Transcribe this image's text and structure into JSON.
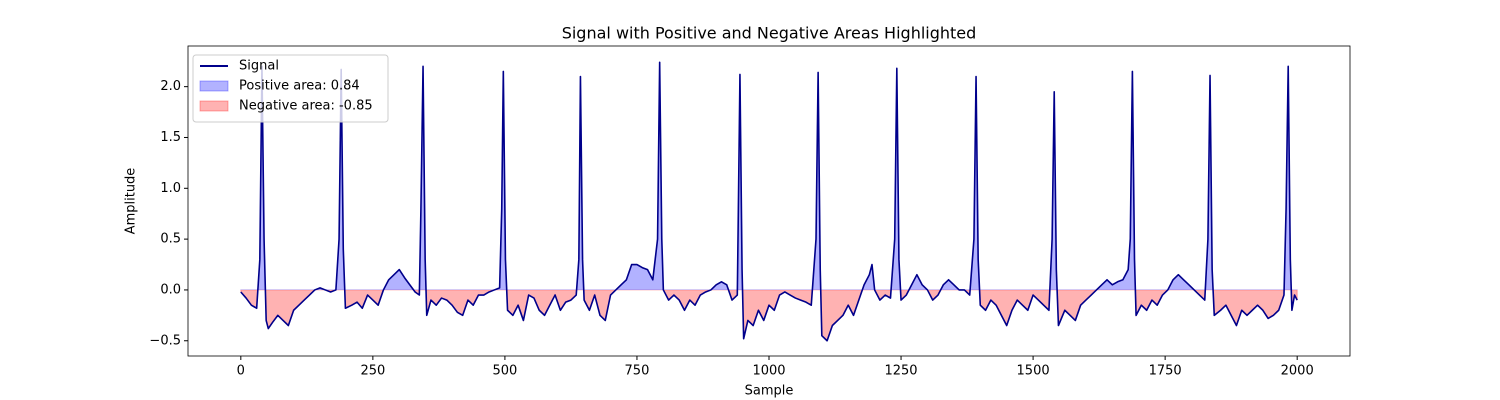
{
  "chart_data": {
    "type": "line",
    "title": "Signal with Positive and Negative Areas Highlighted",
    "x_label": "Sample",
    "y_label": "Amplitude",
    "x": [
      0,
      10,
      20,
      30,
      36,
      40,
      44,
      48,
      52,
      60,
      70,
      80,
      90,
      100,
      110,
      120,
      130,
      140,
      150,
      160,
      170,
      180,
      186,
      190,
      194,
      198,
      210,
      220,
      230,
      240,
      250,
      260,
      270,
      280,
      290,
      300,
      310,
      320,
      330,
      338,
      341,
      345,
      349,
      352,
      360,
      370,
      380,
      390,
      400,
      410,
      420,
      430,
      440,
      450,
      460,
      470,
      480,
      490,
      494,
      497,
      501,
      505,
      515,
      525,
      535,
      545,
      555,
      565,
      575,
      585,
      595,
      605,
      615,
      625,
      635,
      640,
      643,
      647,
      650,
      660,
      670,
      680,
      690,
      700,
      710,
      720,
      730,
      740,
      750,
      760,
      770,
      780,
      789,
      793,
      797,
      800,
      810,
      820,
      830,
      840,
      850,
      860,
      870,
      880,
      890,
      900,
      910,
      920,
      930,
      940,
      942,
      945,
      949,
      952,
      960,
      970,
      980,
      990,
      1000,
      1010,
      1020,
      1030,
      1040,
      1050,
      1060,
      1070,
      1080,
      1089,
      1093,
      1097,
      1100,
      1110,
      1120,
      1130,
      1140,
      1150,
      1160,
      1170,
      1180,
      1190,
      1195,
      1200,
      1210,
      1220,
      1230,
      1238,
      1242,
      1246,
      1250,
      1260,
      1270,
      1280,
      1290,
      1300,
      1310,
      1320,
      1330,
      1340,
      1350,
      1360,
      1370,
      1380,
      1388,
      1392,
      1396,
      1400,
      1410,
      1420,
      1430,
      1440,
      1450,
      1460,
      1470,
      1480,
      1490,
      1500,
      1510,
      1520,
      1530,
      1536,
      1540,
      1544,
      1548,
      1560,
      1570,
      1580,
      1590,
      1600,
      1610,
      1620,
      1630,
      1640,
      1650,
      1660,
      1670,
      1680,
      1684,
      1688,
      1692,
      1695,
      1705,
      1715,
      1725,
      1735,
      1745,
      1755,
      1765,
      1775,
      1785,
      1795,
      1805,
      1815,
      1825,
      1831,
      1835,
      1839,
      1843,
      1855,
      1865,
      1875,
      1885,
      1895,
      1905,
      1915,
      1925,
      1935,
      1945,
      1955,
      1965,
      1975,
      1979,
      1983,
      1987,
      1990,
      1995,
      2000
    ],
    "series": [
      {
        "name": "Signal",
        "color": "#00008b",
        "values": [
          -0.02,
          -0.08,
          -0.15,
          -0.18,
          0.3,
          2.2,
          0.5,
          -0.3,
          -0.38,
          -0.32,
          -0.25,
          -0.3,
          -0.35,
          -0.2,
          -0.15,
          -0.1,
          -0.05,
          0.0,
          0.02,
          0.0,
          -0.02,
          0.0,
          0.5,
          2.17,
          0.4,
          -0.18,
          -0.15,
          -0.12,
          -0.18,
          -0.05,
          -0.1,
          -0.15,
          0.0,
          0.1,
          0.15,
          0.2,
          0.12,
          0.05,
          -0.02,
          -0.05,
          0.8,
          2.2,
          0.3,
          -0.25,
          -0.1,
          -0.15,
          -0.08,
          -0.1,
          -0.15,
          -0.22,
          -0.25,
          -0.1,
          -0.15,
          -0.05,
          -0.05,
          -0.02,
          0.0,
          0.02,
          0.8,
          2.15,
          0.3,
          -0.2,
          -0.25,
          -0.15,
          -0.3,
          -0.05,
          -0.08,
          -0.2,
          -0.25,
          -0.15,
          -0.05,
          -0.2,
          -0.12,
          -0.1,
          -0.05,
          0.3,
          2.1,
          0.3,
          -0.1,
          -0.2,
          -0.05,
          -0.25,
          -0.3,
          -0.05,
          0.0,
          0.05,
          0.1,
          0.25,
          0.25,
          0.22,
          0.2,
          0.1,
          0.5,
          2.24,
          0.5,
          0.0,
          -0.1,
          -0.05,
          -0.1,
          -0.2,
          -0.1,
          -0.15,
          -0.05,
          -0.02,
          0.0,
          0.05,
          0.08,
          0.05,
          -0.1,
          -0.05,
          0.8,
          2.12,
          0.2,
          -0.48,
          -0.3,
          -0.35,
          -0.2,
          -0.3,
          -0.15,
          -0.2,
          -0.05,
          -0.02,
          -0.05,
          -0.08,
          -0.1,
          -0.12,
          -0.15,
          0.5,
          2.14,
          0.2,
          -0.45,
          -0.5,
          -0.35,
          -0.3,
          -0.25,
          -0.15,
          -0.25,
          -0.1,
          0.05,
          0.15,
          0.25,
          0.0,
          -0.1,
          -0.05,
          -0.08,
          0.5,
          2.18,
          0.3,
          -0.1,
          -0.05,
          0.05,
          0.15,
          0.05,
          0.0,
          -0.1,
          -0.05,
          0.05,
          0.1,
          0.05,
          0.0,
          0.0,
          -0.05,
          0.5,
          2.1,
          0.3,
          -0.15,
          -0.2,
          -0.1,
          -0.15,
          -0.25,
          -0.35,
          -0.2,
          -0.1,
          -0.15,
          -0.2,
          -0.05,
          -0.1,
          -0.15,
          -0.2,
          0.5,
          1.95,
          0.2,
          -0.35,
          -0.2,
          -0.25,
          -0.3,
          -0.15,
          -0.1,
          -0.05,
          0.0,
          0.05,
          0.1,
          0.05,
          0.08,
          0.1,
          0.2,
          0.5,
          2.15,
          0.3,
          -0.25,
          -0.15,
          -0.2,
          -0.1,
          -0.15,
          -0.05,
          0.0,
          0.1,
          0.15,
          0.1,
          0.05,
          0.0,
          -0.05,
          -0.1,
          0.5,
          2.11,
          0.2,
          -0.25,
          -0.2,
          -0.15,
          -0.25,
          -0.35,
          -0.2,
          -0.25,
          -0.2,
          -0.15,
          -0.2,
          -0.28,
          -0.25,
          -0.2,
          -0.05,
          0.8,
          2.2,
          0.3,
          -0.2,
          -0.05,
          -0.1
        ]
      }
    ],
    "fills": [
      {
        "name": "Positive area: 0.84",
        "color": "#0000ff",
        "opacity": 0.3,
        "where": "above"
      },
      {
        "name": "Negative area: -0.85",
        "color": "#ff0000",
        "opacity": 0.3,
        "where": "below"
      }
    ],
    "xlim": [
      -100,
      2100
    ],
    "xticks": [
      0,
      250,
      500,
      750,
      1000,
      1250,
      1500,
      1750,
      2000
    ],
    "ylim": [
      -0.65,
      2.4
    ],
    "yticks": [
      {
        "value": -0.5,
        "label": "−0.5"
      },
      {
        "value": 0,
        "label": "0.0"
      },
      0.5,
      {
        "value": 1,
        "label": "1.0"
      },
      1.5,
      {
        "value": 2,
        "label": "2.0"
      }
    ],
    "grid": false,
    "legend": "upper left"
  }
}
